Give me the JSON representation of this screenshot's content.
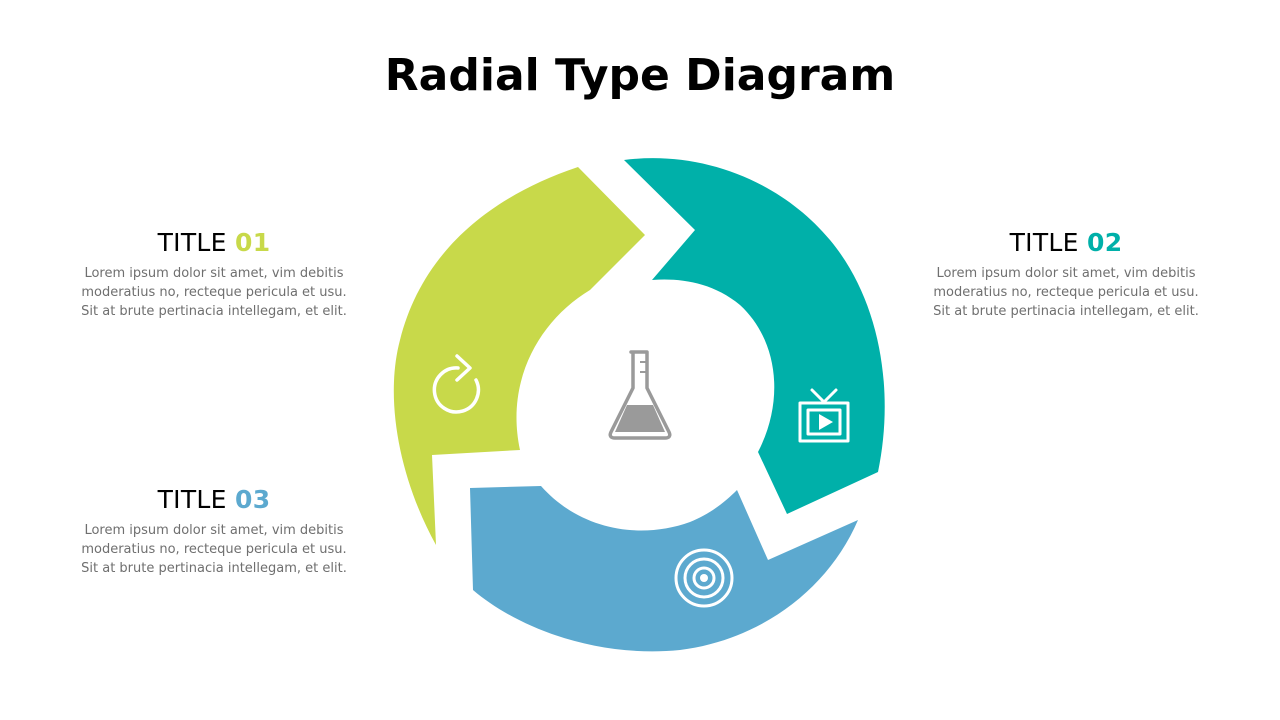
{
  "title": "Radial Type Diagram",
  "colors": {
    "segment_1": "#c8d94a",
    "segment_2": "#00b0a9",
    "segment_3": "#5ca9cf",
    "center_icon": "#9a9a9a",
    "body_text": "#6f6f6f"
  },
  "blocks": [
    {
      "title_word": "TITLE",
      "title_number": "01",
      "accent": "#c8d94a",
      "icon": "refresh-icon",
      "lines": [
        "Lorem ipsum dolor sit amet, vim debitis",
        "moderatius no, recteque pericula et usu.",
        "Sit at brute pertinacia intellegam, et elit."
      ]
    },
    {
      "title_word": "TITLE",
      "title_number": "02",
      "accent": "#00b0a9",
      "icon": "tv-icon",
      "lines": [
        "Lorem ipsum dolor sit amet, vim debitis",
        "moderatius no, recteque pericula et usu.",
        "Sit at brute pertinacia intellegam, et elit."
      ]
    },
    {
      "title_word": "TITLE",
      "title_number": "03",
      "accent": "#5ca9cf",
      "icon": "target-icon",
      "lines": [
        "Lorem ipsum dolor sit amet, vim debitis",
        "moderatius no, recteque pericula et usu.",
        "Sit at brute pertinacia intellegam, et elit."
      ]
    }
  ],
  "center_icon": "flask-icon"
}
